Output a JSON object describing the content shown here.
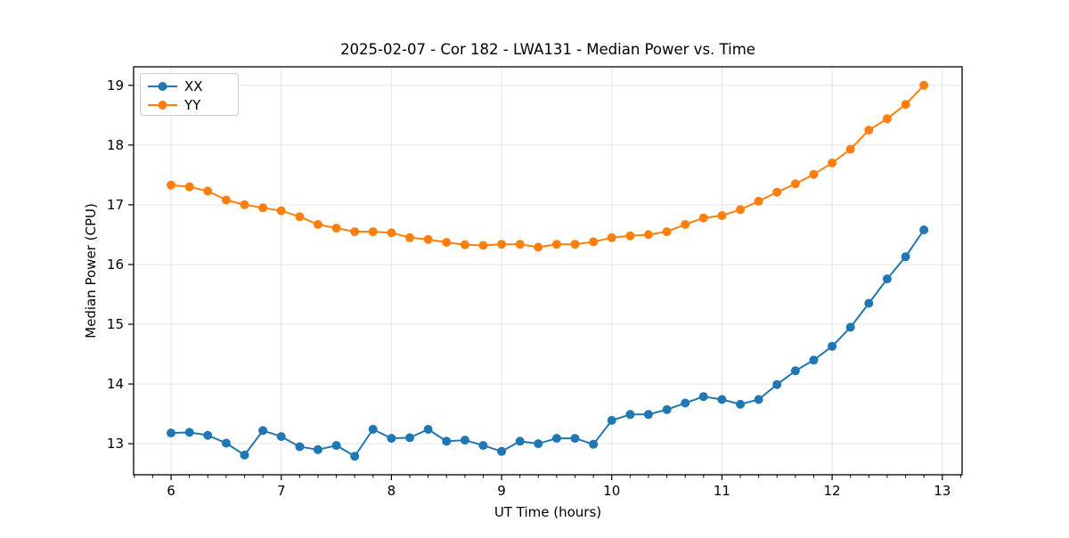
{
  "figure": {
    "background": "#ffffff"
  },
  "chart_data": {
    "type": "line",
    "title": "2025-02-07 - Cor 182 - LWA131 - Median Power vs. Time",
    "xlabel": "UT Time (hours)",
    "ylabel": "Median Power (CPU)",
    "xlim": [
      5.66,
      13.18
    ],
    "ylim": [
      12.48,
      19.31
    ],
    "xticks": [
      6,
      7,
      8,
      9,
      10,
      11,
      12,
      13
    ],
    "yticks": [
      13,
      14,
      15,
      16,
      17,
      18,
      19
    ],
    "x_minor_divisions": 6,
    "grid": true,
    "grid_color": "#e3e3e3",
    "spine_color": "#000000",
    "legend_position": "upper-left",
    "legend_border_color": "#cccccc",
    "x": [
      6.0,
      6.167,
      6.333,
      6.5,
      6.667,
      6.833,
      7.0,
      7.167,
      7.333,
      7.5,
      7.667,
      7.833,
      8.0,
      8.167,
      8.333,
      8.5,
      8.667,
      8.833,
      9.0,
      9.167,
      9.333,
      9.5,
      9.667,
      9.833,
      10.0,
      10.167,
      10.333,
      10.5,
      10.667,
      10.833,
      11.0,
      11.167,
      11.333,
      11.5,
      11.667,
      11.833,
      12.0,
      12.167,
      12.333,
      12.5,
      12.667,
      12.833
    ],
    "series": [
      {
        "name": "XX",
        "color": "#1f77b4",
        "values": [
          13.18,
          13.19,
          13.14,
          13.01,
          12.81,
          13.22,
          13.12,
          12.95,
          12.9,
          12.97,
          12.79,
          13.24,
          13.09,
          13.1,
          13.24,
          13.04,
          13.06,
          12.97,
          12.87,
          13.04,
          13.0,
          13.09,
          13.09,
          12.99,
          13.39,
          13.49,
          13.49,
          13.57,
          13.68,
          13.79,
          13.74,
          13.66,
          13.74,
          13.99,
          14.22,
          14.4,
          14.63,
          14.95,
          15.35,
          15.76,
          16.13,
          16.58
        ]
      },
      {
        "name": "YY",
        "color": "#ff7f0e",
        "values": [
          17.33,
          17.3,
          17.23,
          17.08,
          17.0,
          16.95,
          16.9,
          16.8,
          16.67,
          16.61,
          16.55,
          16.55,
          16.53,
          16.45,
          16.42,
          16.37,
          16.33,
          16.32,
          16.34,
          16.34,
          16.29,
          16.34,
          16.34,
          16.38,
          16.45,
          16.48,
          16.5,
          16.55,
          16.67,
          16.78,
          16.82,
          16.92,
          17.06,
          17.21,
          17.35,
          17.51,
          17.7,
          17.93,
          18.25,
          18.44,
          18.68,
          19.0
        ]
      }
    ]
  }
}
